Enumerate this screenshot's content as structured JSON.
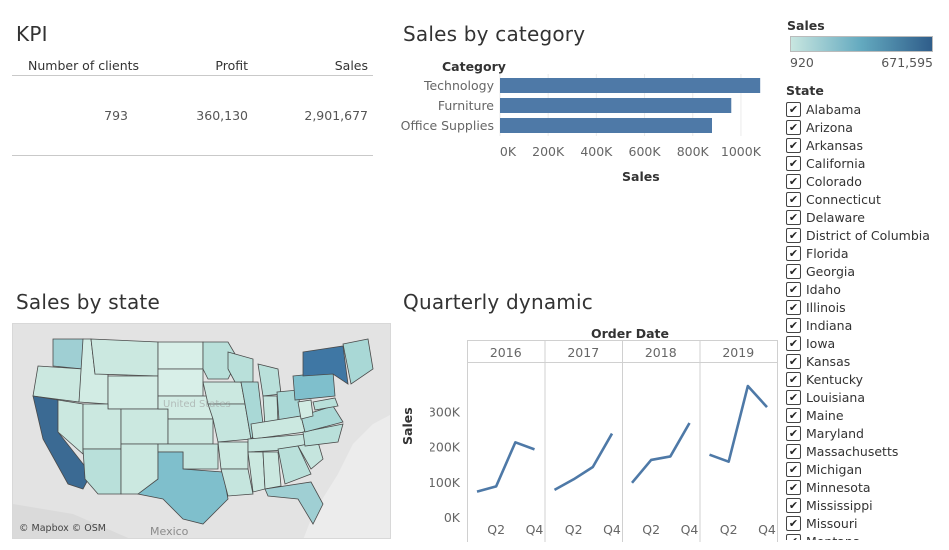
{
  "kpi": {
    "title": "KPI",
    "headers": [
      "Number of clients",
      "Profit",
      "Sales"
    ],
    "values": [
      "793",
      "360,130",
      "2,901,677"
    ]
  },
  "category_chart": {
    "title": "Sales by category",
    "legend_label": "Category",
    "chart_data": {
      "type": "bar",
      "orientation": "horizontal",
      "categories": [
        "Technology",
        "Furniture",
        "Office Supplies"
      ],
      "values": [
        1080000,
        960000,
        880000
      ],
      "xlabel": "Sales",
      "xlim": [
        0,
        1100000
      ],
      "ticks": [
        "0K",
        "200K",
        "400K",
        "600K",
        "800K",
        "1000K"
      ],
      "bar_color": "#4e79a7"
    }
  },
  "map": {
    "title": "Sales by state",
    "attribution": "© Mapbox © OSM",
    "country_label": "Mexico",
    "ghost_label": "United States"
  },
  "quarterly": {
    "title": "Quarterly dynamic",
    "column_header": "Order Date",
    "chart_data": {
      "type": "line",
      "panels": [
        {
          "year": "2016",
          "x": [
            "Q1",
            "Q2",
            "Q3",
            "Q4"
          ],
          "values": [
            75000,
            90000,
            215000,
            195000
          ]
        },
        {
          "year": "2017",
          "x": [
            "Q1",
            "Q2",
            "Q3",
            "Q4"
          ],
          "values": [
            80000,
            110000,
            145000,
            240000
          ]
        },
        {
          "year": "2018",
          "x": [
            "Q1",
            "Q2",
            "Q3",
            "Q4"
          ],
          "values": [
            100000,
            165000,
            175000,
            270000
          ]
        },
        {
          "year": "2019",
          "x": [
            "Q1",
            "Q2",
            "Q3",
            "Q4"
          ],
          "values": [
            180000,
            160000,
            375000,
            315000
          ]
        }
      ],
      "ylabel": "Sales",
      "ylim": [
        0,
        400000
      ],
      "yticks": [
        "0K",
        "100K",
        "200K",
        "300K"
      ],
      "xticks_shown": [
        "Q2",
        "Q4"
      ],
      "line_color": "#4e79a7"
    }
  },
  "legend": {
    "sales_title": "Sales",
    "min": "920",
    "max": "671,595",
    "state_title": "State",
    "states": [
      "Alabama",
      "Arizona",
      "Arkansas",
      "California",
      "Colorado",
      "Connecticut",
      "Delaware",
      "District of Columbia",
      "Florida",
      "Georgia",
      "Idaho",
      "Illinois",
      "Indiana",
      "Iowa",
      "Kansas",
      "Kentucky",
      "Louisiana",
      "Maine",
      "Maryland",
      "Massachusetts",
      "Michigan",
      "Minnesota",
      "Mississippi",
      "Missouri",
      "Montana"
    ],
    "checkmark": "✔"
  }
}
